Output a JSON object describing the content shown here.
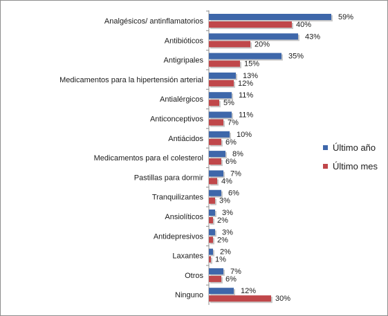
{
  "chart_data": {
    "type": "bar",
    "orientation": "horizontal",
    "categories": [
      "Analgésicos/ antinflamatorios",
      "Antibióticos",
      "Antigripales",
      "Medicamentos para la hipertensión arterial",
      "Antialérgicos",
      "Anticonceptivos",
      "Antiácidos",
      "Medicamentos para el colesterol",
      "Pastillas para dormir",
      "Tranquilizantes",
      "Ansiolíticos",
      "Antidepresivos",
      "Laxantes",
      "Otros",
      "Ninguno"
    ],
    "series": [
      {
        "name": "Último año",
        "color": "#3e67aa",
        "values": [
          59,
          43,
          35,
          13,
          11,
          11,
          10,
          8,
          7,
          6,
          3,
          3,
          2,
          7,
          12
        ],
        "labels": [
          "59%",
          "43%",
          "35%",
          "13%",
          "11%",
          "11%",
          "10%",
          "8%",
          "7%",
          "6%",
          "3%",
          "3%",
          "2%",
          "7%",
          "12%"
        ]
      },
      {
        "name": "Último mes",
        "color": "#c0474a",
        "values": [
          40,
          20,
          15,
          12,
          5,
          7,
          6,
          6,
          4,
          3,
          2,
          2,
          1,
          6,
          30
        ],
        "labels": [
          "40%",
          "20%",
          "15%",
          "12%",
          "5%",
          "7%",
          "6%",
          "6%",
          "4%",
          "3%",
          "2%",
          "2%",
          "1%",
          "6%",
          "30%"
        ]
      }
    ],
    "xlim": [
      0,
      59
    ],
    "grid": false,
    "legend_position": "right"
  }
}
